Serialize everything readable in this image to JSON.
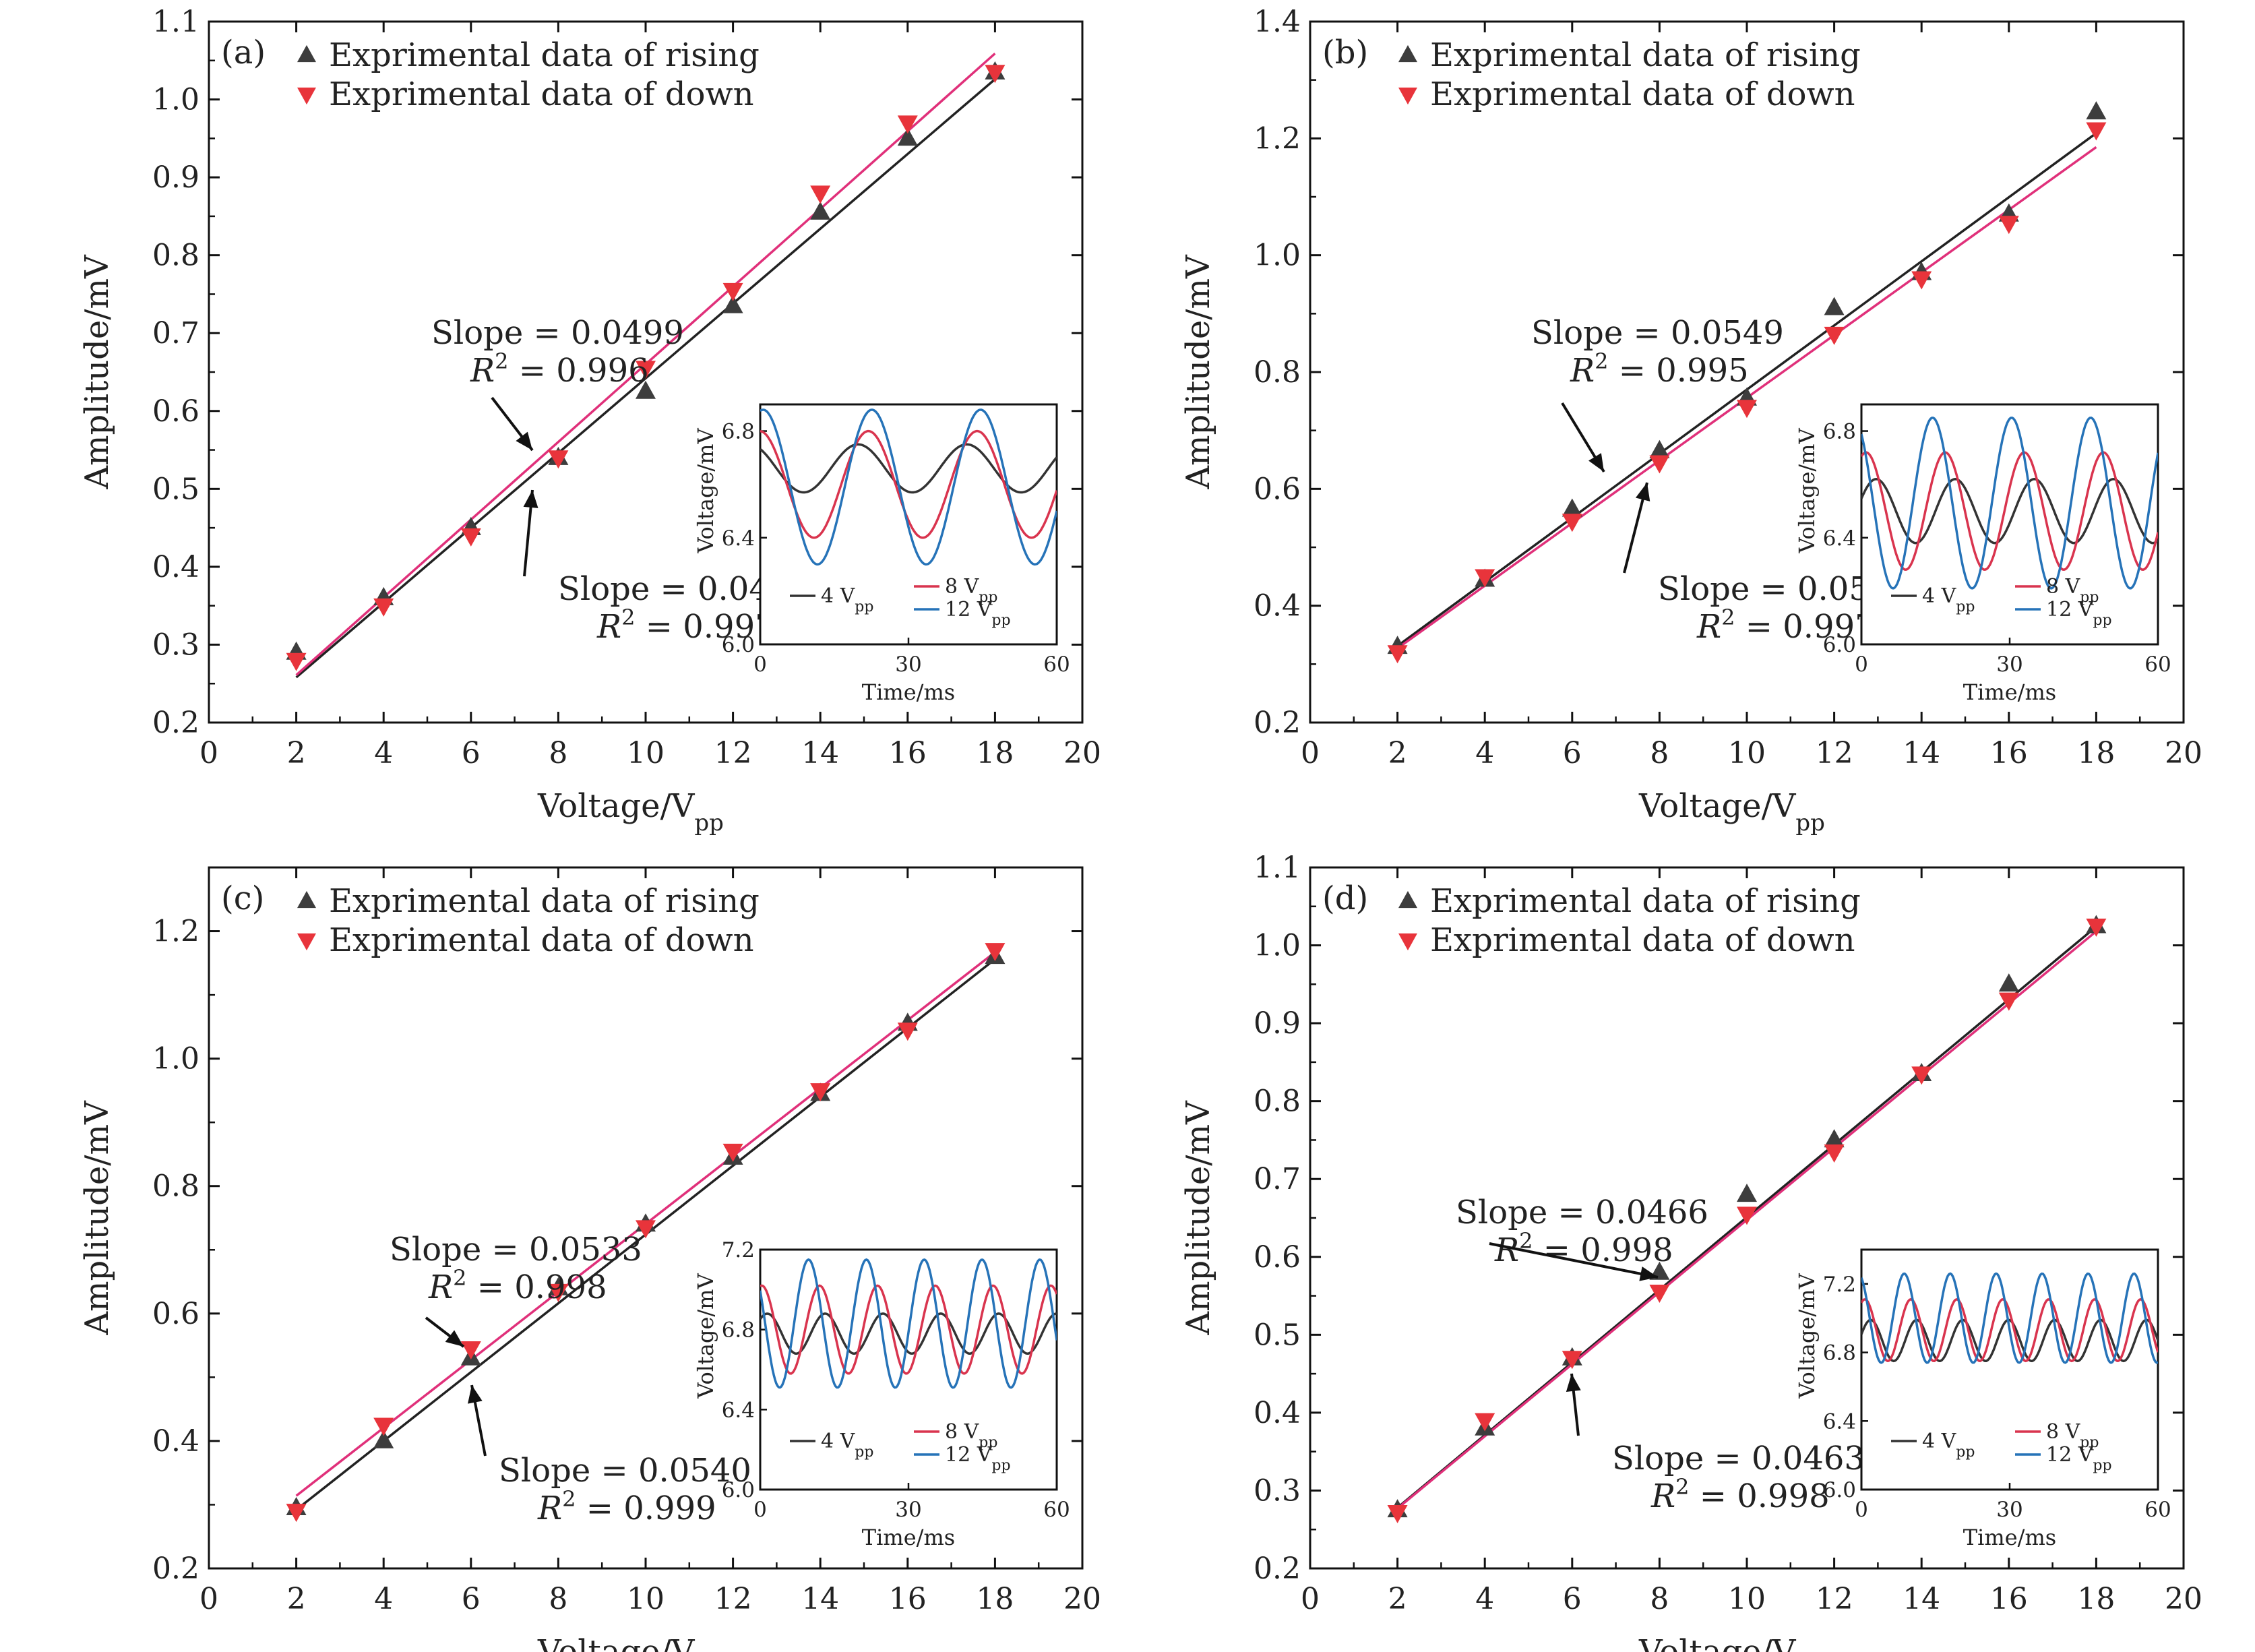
{
  "figure": {
    "marker_colors": {
      "rising": "#3d3d3d",
      "down": "#e8343b"
    },
    "line_colors": {
      "rising_fit": "#222222",
      "down_fit": "#e0307a"
    },
    "inset_colors": {
      "4": "#333333",
      "8": "#d9344e",
      "12": "#2673b8"
    }
  },
  "chart_data": [
    {
      "type": "scatter",
      "panel_label": "(a)",
      "xlabel": "Voltage/V",
      "xlabel_sub": "pp",
      "ylabel": "Amplitude/mV",
      "xlim": [
        0,
        20
      ],
      "ylim": [
        0.2,
        1.1
      ],
      "xticks": [
        "0",
        "2",
        "4",
        "6",
        "8",
        "10",
        "12",
        "14",
        "16",
        "18",
        "20"
      ],
      "yticks": [
        "0.2",
        "0.3",
        "0.4",
        "0.5",
        "0.6",
        "0.7",
        "0.8",
        "0.9",
        "1.0",
        "1.1"
      ],
      "legend": [
        "Exprimental data of rising",
        "Exprimental data of down"
      ],
      "series": [
        {
          "name": "Exprimental data of rising",
          "marker": "triangle-up",
          "x": [
            2,
            4,
            6,
            8,
            10,
            12,
            14,
            16,
            18
          ],
          "y": [
            0.29,
            0.36,
            0.45,
            0.54,
            0.625,
            0.735,
            0.855,
            0.95,
            1.035
          ]
        },
        {
          "name": "Exprimental data of down",
          "marker": "triangle-down",
          "x": [
            2,
            4,
            6,
            8,
            10,
            12,
            14,
            16,
            18
          ],
          "y": [
            0.28,
            0.35,
            0.44,
            0.54,
            0.655,
            0.755,
            0.88,
            0.97,
            1.035
          ]
        }
      ],
      "fit_lines": [
        {
          "for": "rising",
          "x": [
            2,
            18
          ],
          "y": [
            0.258,
            1.026
          ]
        },
        {
          "for": "down",
          "x": [
            2,
            18
          ],
          "y": [
            0.261,
            1.059
          ]
        }
      ],
      "annotations": [
        {
          "slope_text": "Slope = 0.0499",
          "r2_value": "= 0.996"
        },
        {
          "slope_text": "Slope = 0.0480",
          "r2_value": "= 0.997"
        }
      ],
      "inset": {
        "xlabel": "Time/ms",
        "ylabel": "Voltage/mV",
        "xlim": [
          0,
          60
        ],
        "ylim": [
          6.0,
          6.9
        ],
        "xticks": [
          "0",
          "30",
          "60"
        ],
        "yticks": [
          "6.0",
          "6.4",
          "6.8"
        ],
        "legend": [
          {
            "label": "4 V",
            "sub": "pp"
          },
          {
            "label": "8 V",
            "sub": "pp"
          },
          {
            "label": "12 V",
            "sub": "pp"
          }
        ],
        "waves": [
          {
            "name": "4 V",
            "center": 6.66,
            "amp": 0.09,
            "period": 22,
            "phase": 2.2
          },
          {
            "name": "8 V",
            "center": 6.6,
            "amp": 0.2,
            "period": 22,
            "phase": 1.6
          },
          {
            "name": "12 V",
            "center": 6.59,
            "amp": 0.29,
            "period": 22,
            "phase": 1.4
          }
        ]
      }
    },
    {
      "type": "scatter",
      "panel_label": "(b)",
      "xlabel": "Voltage/V",
      "xlabel_sub": "pp",
      "ylabel": "Amplitude/mV",
      "xlim": [
        0,
        20
      ],
      "ylim": [
        0.2,
        1.4
      ],
      "xticks": [
        "0",
        "2",
        "4",
        "6",
        "8",
        "10",
        "12",
        "14",
        "16",
        "18",
        "20"
      ],
      "yticks": [
        "0.2",
        "0.4",
        "0.6",
        "0.8",
        "1.0",
        "1.2",
        "1.4"
      ],
      "legend": [
        "Exprimental data of rising",
        "Exprimental data of down"
      ],
      "series": [
        {
          "name": "Exprimental data of rising",
          "marker": "triangle-up",
          "x": [
            2,
            4,
            6,
            8,
            10,
            12,
            14,
            16,
            18
          ],
          "y": [
            0.33,
            0.445,
            0.565,
            0.665,
            0.755,
            0.91,
            0.97,
            1.07,
            1.245
          ]
        },
        {
          "name": "Exprimental data of down",
          "marker": "triangle-down",
          "x": [
            2,
            4,
            6,
            8,
            10,
            12,
            14,
            16,
            18
          ],
          "y": [
            0.32,
            0.45,
            0.545,
            0.645,
            0.74,
            0.865,
            0.96,
            1.055,
            1.215
          ]
        },
        {
          "name": "fit",
          "marker": "none",
          "x": [],
          "y": []
        }
      ],
      "fit_lines": [
        {
          "for": "rising",
          "x": [
            2,
            18
          ],
          "y": [
            0.331,
            1.209
          ]
        },
        {
          "for": "down",
          "x": [
            2,
            18
          ],
          "y": [
            0.327,
            1.185
          ]
        }
      ],
      "annotations": [
        {
          "slope_text": "Slope = 0.0549",
          "r2_value": "= 0.995"
        },
        {
          "slope_text": "Slope = 0.0536",
          "r2_value": "= 0.997"
        }
      ],
      "inset": {
        "xlabel": "Time/ms",
        "ylabel": "Voltage/mV",
        "xlim": [
          0,
          60
        ],
        "ylim": [
          6.0,
          6.9
        ],
        "xticks": [
          "0",
          "30",
          "60"
        ],
        "yticks": [
          "6.0",
          "6.4",
          "6.8"
        ],
        "legend": [
          {
            "label": "4 V",
            "sub": "pp"
          },
          {
            "label": "8 V",
            "sub": "pp"
          },
          {
            "label": "12 V",
            "sub": "pp"
          }
        ],
        "waves": [
          {
            "name": "4 V",
            "center": 6.5,
            "amp": 0.12,
            "period": 16,
            "phase": 0.4
          },
          {
            "name": "8 V",
            "center": 6.5,
            "amp": 0.22,
            "period": 16,
            "phase": 1.2
          },
          {
            "name": "12 V",
            "center": 6.53,
            "amp": 0.32,
            "period": 16,
            "phase": 2.2
          }
        ]
      }
    },
    {
      "type": "scatter",
      "panel_label": "(c)",
      "xlabel": "Voltage/V",
      "xlabel_sub": "pp",
      "ylabel": "Amplitude/mV",
      "xlim": [
        0,
        20
      ],
      "ylim": [
        0.2,
        1.3
      ],
      "xticks": [
        "0",
        "2",
        "4",
        "6",
        "8",
        "10",
        "12",
        "14",
        "16",
        "18",
        "20"
      ],
      "yticks": [
        "0.2",
        "0.4",
        "0.6",
        "0.8",
        "1.0",
        "1.2"
      ],
      "legend": [
        "Exprimental data of rising",
        "Exprimental data of down"
      ],
      "series": [
        {
          "name": "Exprimental data of rising",
          "marker": "triangle-up",
          "x": [
            2,
            4,
            6,
            8,
            10,
            12,
            14,
            16,
            18
          ],
          "y": [
            0.295,
            0.4,
            0.53,
            0.64,
            0.74,
            0.845,
            0.945,
            1.055,
            1.16
          ]
        },
        {
          "name": "Exprimental data of down",
          "marker": "triangle-down",
          "x": [
            2,
            4,
            6,
            8,
            10,
            12,
            14,
            16,
            18
          ],
          "y": [
            0.29,
            0.425,
            0.545,
            0.635,
            0.735,
            0.855,
            0.95,
            1.045,
            1.17
          ]
        }
      ],
      "fit_lines": [
        {
          "for": "rising",
          "x": [
            2,
            18
          ],
          "y": [
            0.292,
            1.156
          ]
        },
        {
          "for": "down",
          "x": [
            2,
            18
          ],
          "y": [
            0.314,
            1.167
          ]
        }
      ],
      "annotations": [
        {
          "slope_text": "Slope = 0.0533",
          "r2_value": "= 0.998"
        },
        {
          "slope_text": "Slope = 0.0540",
          "r2_value": "= 0.999"
        }
      ],
      "inset": {
        "xlabel": "Time/ms",
        "ylabel": "Voltage/mV",
        "xlim": [
          0,
          60
        ],
        "ylim": [
          6.0,
          7.2
        ],
        "xticks": [
          "0",
          "30",
          "60"
        ],
        "yticks": [
          "6.0",
          "6.4",
          "6.8",
          "7.2"
        ],
        "legend": [
          {
            "label": "4 V",
            "sub": "pp"
          },
          {
            "label": "8 V",
            "sub": "pp"
          },
          {
            "label": "12 V",
            "sub": "pp"
          }
        ],
        "waves": [
          {
            "name": "4 V",
            "center": 6.78,
            "amp": 0.1,
            "period": 11.7,
            "phase": 0.8
          },
          {
            "name": "8 V",
            "center": 6.8,
            "amp": 0.22,
            "period": 11.7,
            "phase": 1.4
          },
          {
            "name": "12 V",
            "center": 6.83,
            "amp": 0.32,
            "period": 11.7,
            "phase": 2.6
          }
        ]
      }
    },
    {
      "type": "scatter",
      "panel_label": "(d)",
      "xlabel": "Voltage/V",
      "xlabel_sub": "pp",
      "ylabel": "Amplitude/mV",
      "xlim": [
        0,
        20
      ],
      "ylim": [
        0.2,
        1.1
      ],
      "xticks": [
        "0",
        "2",
        "4",
        "6",
        "8",
        "10",
        "12",
        "14",
        "16",
        "18",
        "20"
      ],
      "yticks": [
        "0.2",
        "0.3",
        "0.4",
        "0.5",
        "0.6",
        "0.7",
        "0.8",
        "0.9",
        "1.0",
        "1.1"
      ],
      "legend": [
        "Exprimental data of rising",
        "Exprimental data of down"
      ],
      "series": [
        {
          "name": "Exprimental data of rising",
          "marker": "triangle-up",
          "x": [
            2,
            4,
            6,
            8,
            10,
            12,
            14,
            16,
            18
          ],
          "y": [
            0.275,
            0.38,
            0.47,
            0.58,
            0.68,
            0.75,
            0.835,
            0.95,
            1.025
          ]
        },
        {
          "name": "Exprimental data of down",
          "marker": "triangle-down",
          "x": [
            2,
            4,
            6,
            8,
            10,
            12,
            14,
            16,
            18
          ],
          "y": [
            0.272,
            0.39,
            0.47,
            0.555,
            0.655,
            0.735,
            0.835,
            0.93,
            1.025
          ]
        }
      ],
      "fit_lines": [
        {
          "for": "rising",
          "x": [
            2,
            18
          ],
          "y": [
            0.278,
            1.024
          ]
        },
        {
          "for": "down",
          "x": [
            2,
            18
          ],
          "y": [
            0.277,
            1.018
          ]
        }
      ],
      "annotations": [
        {
          "slope_text": "Slope = 0.0466",
          "r2_value": "= 0.998"
        },
        {
          "slope_text": "Slope = 0.0463",
          "r2_value": "= 0.998"
        }
      ],
      "inset": {
        "xlabel": "Time/ms",
        "ylabel": "Voltage/mV",
        "xlim": [
          0,
          60
        ],
        "ylim": [
          6.0,
          7.4
        ],
        "xticks": [
          "0",
          "30",
          "60"
        ],
        "yticks": [
          "6.0",
          "6.4",
          "6.8",
          "7.2"
        ],
        "legend": [
          {
            "label": "4 V",
            "sub": "pp"
          },
          {
            "label": "8 V",
            "sub": "pp"
          },
          {
            "label": "12 V",
            "sub": "pp"
          }
        ],
        "waves": [
          {
            "name": "4 V",
            "center": 6.87,
            "amp": 0.12,
            "period": 9.3,
            "phase": 0.3
          },
          {
            "name": "8 V",
            "center": 6.93,
            "amp": 0.18,
            "period": 9.3,
            "phase": 1.1
          },
          {
            "name": "12 V",
            "center": 7.0,
            "amp": 0.26,
            "period": 9.3,
            "phase": 2.0
          }
        ]
      }
    }
  ]
}
